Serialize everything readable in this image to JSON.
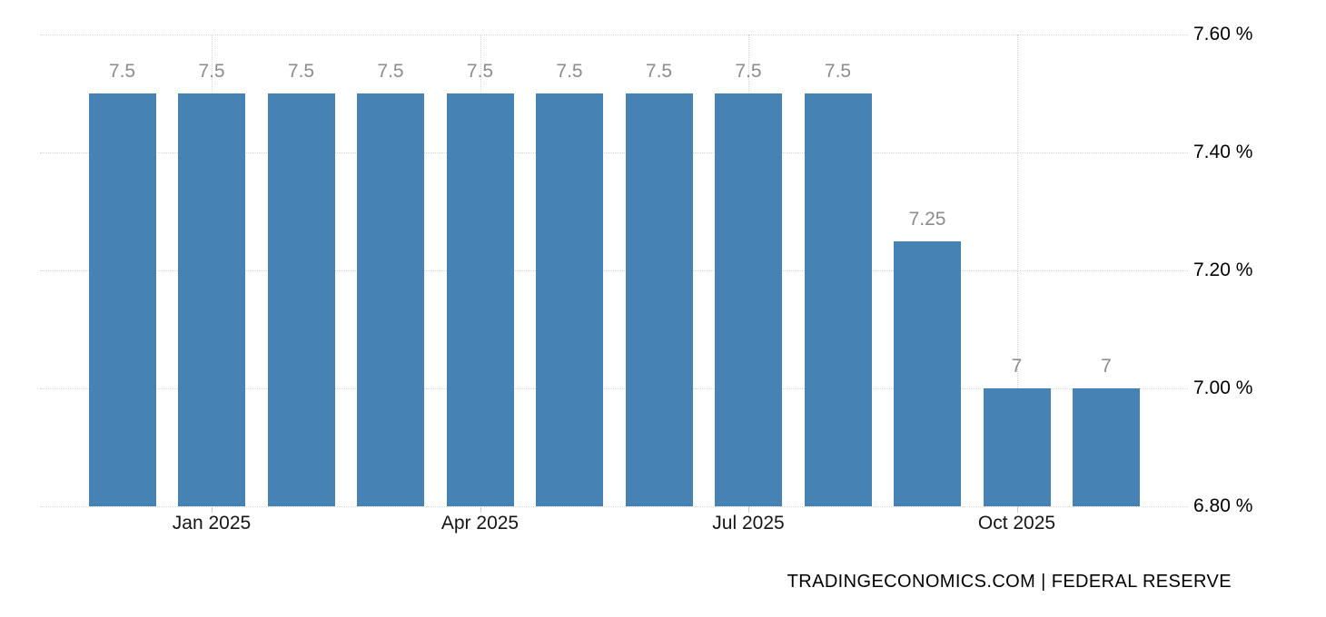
{
  "chart_data": {
    "type": "bar",
    "title": "",
    "xlabel": "",
    "ylabel": "",
    "values": [
      7.5,
      7.5,
      7.5,
      7.5,
      7.5,
      7.5,
      7.5,
      7.5,
      7.5,
      7.25,
      7,
      7
    ],
    "data_labels": [
      "7.5",
      "7.5",
      "7.5",
      "7.5",
      "7.5",
      "7.5",
      "7.5",
      "7.5",
      "7.5",
      "7.25",
      "7",
      "7"
    ],
    "x_tick_labels": [
      "Jan 2025",
      "Apr 2025",
      "Jul 2025",
      "Oct 2025"
    ],
    "x_tick_bar_indices": [
      1,
      4,
      7,
      10
    ],
    "y_tick_labels": [
      "7.60 %",
      "7.40 %",
      "7.20 %",
      "7.00 %",
      "6.80 %"
    ],
    "y_tick_values": [
      7.6,
      7.4,
      7.2,
      7.0,
      6.8
    ],
    "ylim": [
      6.8,
      7.6
    ],
    "unit": "%",
    "grid": "dotted",
    "legend": "none",
    "source_attribution": "TRADINGECONOMICS.COM | FEDERAL RESERVE",
    "colors": {
      "bar": "#4682b4",
      "grid": "#d5d5d5",
      "data_label": "#8c8c8c",
      "x_label": "#161616",
      "y_label": "#000000",
      "attribution": "#8f8f8f",
      "tick": "#cccccc",
      "background": "#ffffff"
    }
  }
}
